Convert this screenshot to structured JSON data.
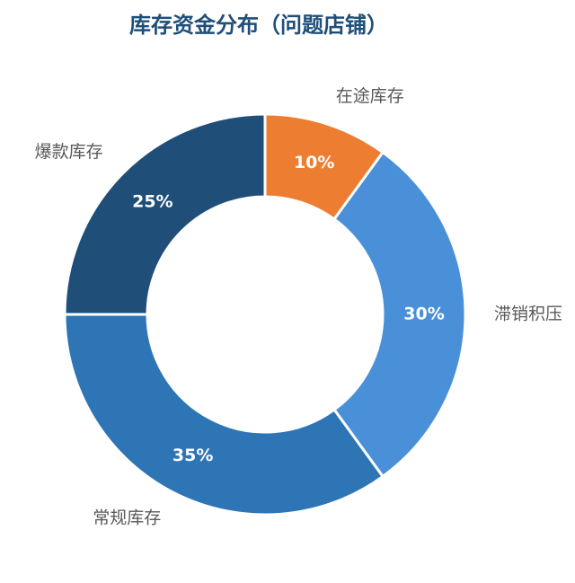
{
  "chart_data": {
    "type": "donut",
    "title": "库存资金分布（问题店铺）",
    "categories": [
      "在途库存",
      "滞销积压",
      "常规库存",
      "爆款库存"
    ],
    "values": [
      10,
      30,
      35,
      25
    ],
    "value_labels": [
      "10%",
      "30%",
      "35%",
      "25%"
    ],
    "colors": [
      "#ED7D31",
      "#4A90D9",
      "#2E75B6",
      "#1F4E79"
    ]
  }
}
